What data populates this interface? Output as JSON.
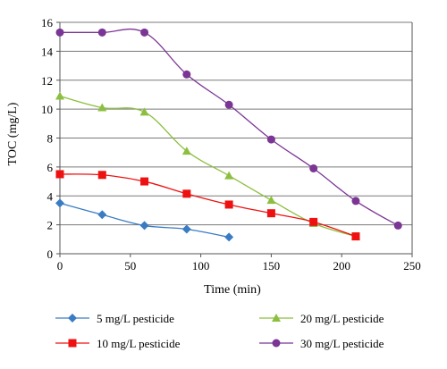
{
  "chart_data": {
    "type": "line",
    "xlabel": "Time (min)",
    "ylabel": "TOC (mg/L)",
    "xlim": [
      0,
      250
    ],
    "ylim": [
      0,
      16
    ],
    "xticks": [
      0,
      50,
      100,
      150,
      200,
      250
    ],
    "yticks": [
      0,
      2,
      4,
      6,
      8,
      10,
      12,
      14,
      16
    ],
    "grid": "horizontal",
    "legend_position": "bottom",
    "series": [
      {
        "name": "5 mg/L pesticide",
        "color": "#3a7cc4",
        "marker": "diamond",
        "x": [
          0,
          30,
          60,
          90,
          120
        ],
        "y": [
          3.5,
          2.7,
          1.95,
          1.7,
          1.15
        ]
      },
      {
        "name": "10 mg/L pesticide",
        "color": "#ee1111",
        "marker": "square",
        "x": [
          0,
          30,
          60,
          90,
          120,
          150,
          180,
          210
        ],
        "y": [
          5.5,
          5.45,
          5.0,
          4.15,
          3.4,
          2.8,
          2.2,
          1.2
        ]
      },
      {
        "name": "20 mg/L pesticide",
        "color": "#8cbf3f",
        "marker": "triangle",
        "x": [
          0,
          30,
          60,
          90,
          120,
          150,
          180,
          210
        ],
        "y": [
          10.9,
          10.1,
          9.8,
          7.1,
          5.4,
          3.7,
          2.1,
          1.2
        ]
      },
      {
        "name": "30 mg/L pesticide",
        "color": "#7b3594",
        "marker": "circle",
        "x": [
          0,
          30,
          60,
          90,
          120,
          150,
          180,
          210,
          240
        ],
        "y": [
          15.3,
          15.3,
          15.3,
          12.4,
          10.3,
          7.9,
          5.9,
          3.65,
          1.95
        ]
      }
    ]
  }
}
